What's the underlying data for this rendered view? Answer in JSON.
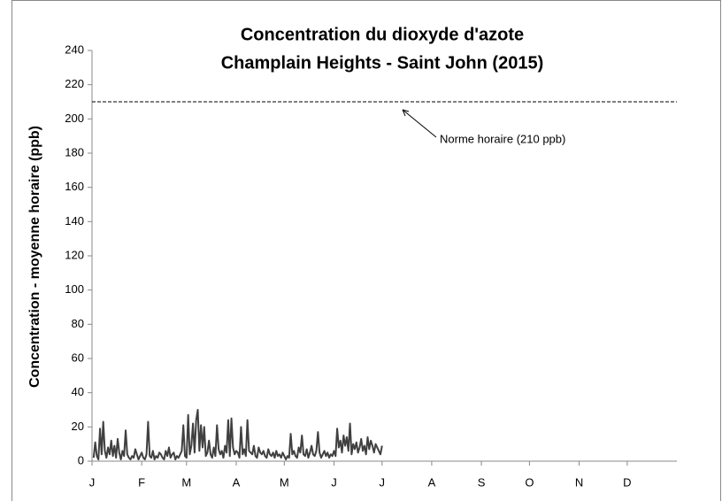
{
  "chart_data": {
    "type": "line",
    "title": [
      "Concentration du dioxyde d'azote",
      "Champlain Heights - Saint John (2015)"
    ],
    "y_label": "Concentration - moyenne horaire (ppb)",
    "color": "#404040",
    "x": [
      1,
      2,
      3,
      4,
      5,
      6,
      7,
      8,
      9,
      10,
      11,
      12,
      13,
      14,
      15,
      16,
      17,
      18,
      19,
      20,
      21,
      22,
      23,
      24,
      25,
      26,
      27,
      28,
      29,
      30,
      31,
      32,
      33,
      34,
      35,
      36,
      37,
      38,
      39,
      40,
      41,
      42,
      43,
      44,
      45,
      46,
      47,
      48,
      49,
      50,
      51,
      52,
      53,
      54,
      55,
      56,
      57,
      58,
      59,
      60,
      61,
      62,
      63,
      64,
      65,
      66,
      67,
      68,
      69,
      70,
      71,
      72,
      73,
      74,
      75,
      76,
      77,
      78,
      79,
      80,
      81,
      82,
      83,
      84,
      85,
      86,
      87,
      88,
      89,
      90,
      91,
      92,
      93,
      94,
      95,
      96,
      97,
      98,
      99,
      100,
      101,
      102,
      103,
      104,
      105,
      106,
      107,
      108,
      109,
      110,
      111,
      112,
      113,
      114,
      115,
      116,
      117,
      118,
      119,
      120,
      121,
      122,
      123,
      124,
      125,
      126,
      127,
      128,
      129,
      130,
      131,
      132,
      133,
      134,
      135,
      136,
      137,
      138,
      139,
      140,
      141,
      142,
      143,
      144,
      145,
      146,
      147,
      148,
      149,
      150,
      151,
      152,
      153,
      154,
      155,
      156,
      157,
      158,
      159,
      160,
      161,
      162,
      163,
      164,
      165,
      166,
      167,
      168,
      169,
      170,
      171,
      172,
      173,
      174,
      175,
      176,
      177,
      178,
      179,
      180,
      181
    ],
    "values": [
      2,
      11,
      3,
      1,
      19,
      4,
      23,
      6,
      2,
      8,
      4,
      12,
      3,
      9,
      2,
      13,
      5,
      1,
      6,
      3,
      18,
      4,
      2,
      1,
      3,
      2,
      7,
      4,
      1,
      3,
      5,
      2,
      1,
      4,
      23,
      3,
      2,
      6,
      1,
      3,
      2,
      5,
      4,
      2,
      1,
      6,
      3,
      8,
      2,
      4,
      5,
      1,
      3,
      2,
      4,
      6,
      21,
      3,
      2,
      27,
      4,
      9,
      22,
      5,
      24,
      30,
      6,
      21,
      8,
      20,
      3,
      5,
      12,
      4,
      2,
      8,
      3,
      21,
      7,
      4,
      6,
      2,
      9,
      5,
      24,
      3,
      25,
      8,
      4,
      6,
      5,
      2,
      20,
      4,
      7,
      3,
      24,
      6,
      5,
      4,
      9,
      3,
      2,
      8,
      5,
      4,
      6,
      3,
      2,
      7,
      4,
      3,
      5,
      2,
      6,
      3,
      4,
      2,
      5,
      3,
      1,
      3,
      2,
      16,
      4,
      6,
      3,
      2,
      8,
      5,
      15,
      4,
      3,
      7,
      2,
      5,
      9,
      4,
      3,
      6,
      17,
      5,
      2,
      4,
      6,
      3,
      5,
      2,
      4,
      3,
      6,
      3,
      19,
      8,
      12,
      5,
      15,
      9,
      14,
      6,
      22,
      4,
      10,
      7,
      11,
      5,
      8,
      13,
      6,
      9,
      4,
      14,
      7,
      12,
      9,
      5,
      10,
      8,
      6,
      4,
      9
    ],
    "xlim": [
      0,
      365
    ],
    "xticks": [
      {
        "value": 0,
        "label": "J"
      },
      {
        "value": 31,
        "label": "F"
      },
      {
        "value": 59,
        "label": "M"
      },
      {
        "value": 90,
        "label": "A"
      },
      {
        "value": 120,
        "label": "M"
      },
      {
        "value": 151,
        "label": "J"
      },
      {
        "value": 181,
        "label": "J"
      },
      {
        "value": 212,
        "label": "A"
      },
      {
        "value": 243,
        "label": "S"
      },
      {
        "value": 273,
        "label": "O"
      },
      {
        "value": 304,
        "label": "N"
      },
      {
        "value": 334,
        "label": "D"
      }
    ],
    "ylim": [
      0,
      240
    ],
    "yticks": [
      0,
      20,
      40,
      60,
      80,
      100,
      120,
      140,
      160,
      180,
      200,
      220,
      240
    ],
    "reference_line": {
      "value": 210,
      "label": "Norme horaire (210 ppb)"
    }
  }
}
